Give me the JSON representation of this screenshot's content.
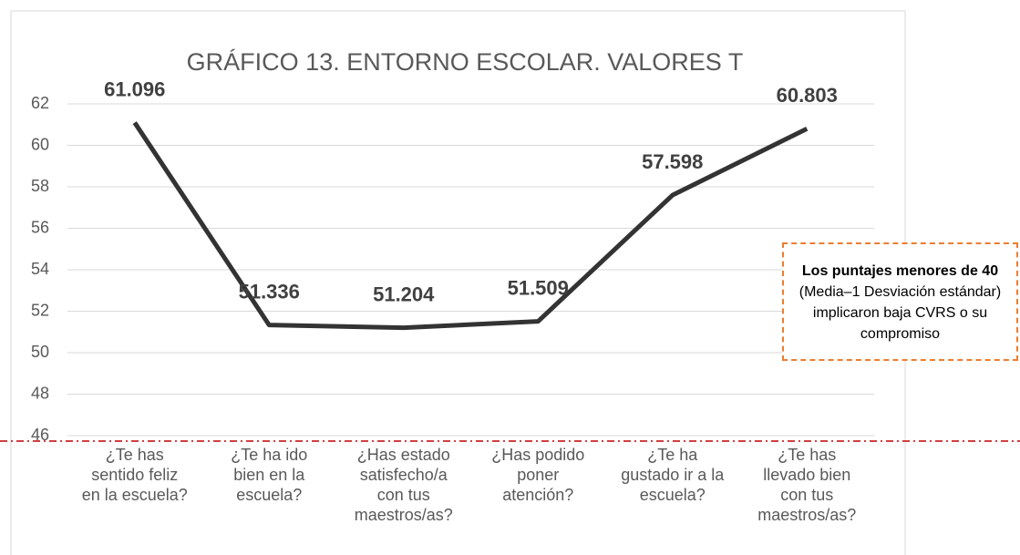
{
  "chart_data": {
    "type": "line",
    "title": "GRÁFICO 13. ENTORNO ESCOLAR. VALORES T",
    "categories": [
      "¿Te has sentido feliz en la escuela?",
      "¿Te ha ido bien en la escuela?",
      "¿Has estado satisfecho/a con tus maestros/as?",
      "¿Has podido poner atención?",
      "¿Te ha gustado ir a la escuela?",
      "¿Te has llevado bien con tus maestros/as?"
    ],
    "values": [
      61.096,
      51.336,
      51.204,
      51.509,
      57.598,
      60.803
    ],
    "color": "#333333",
    "ylim": [
      46,
      62
    ],
    "yticks": [
      46,
      48,
      50,
      52,
      54,
      56,
      58,
      60,
      62
    ],
    "grid": true,
    "annotation": {
      "bold": "Los puntajes menores de 40",
      "text": "(Media–1 Desviación estándar) implicaron baja CVRS o su compromiso"
    }
  }
}
